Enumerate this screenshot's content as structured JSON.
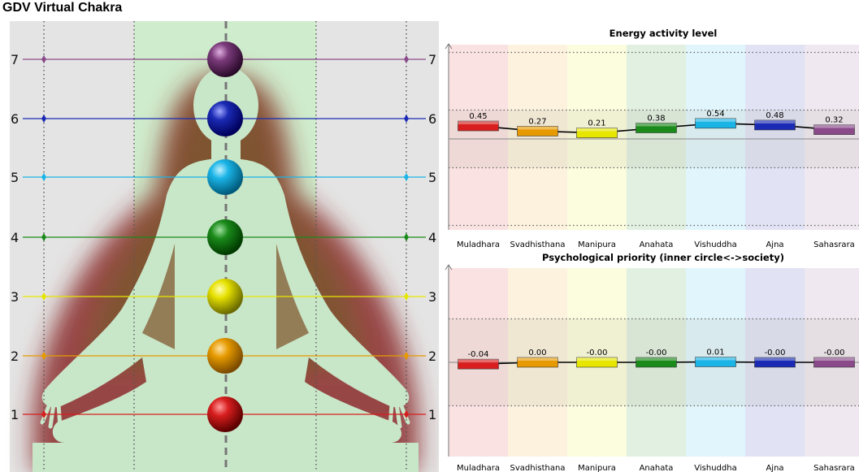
{
  "app": {
    "title": "GDV Virtual Chakra"
  },
  "colors": {
    "chakras": [
      "#d81e1e",
      "#e69a00",
      "#e6e600",
      "#1a8a1a",
      "#1ab4e6",
      "#1a2ab4",
      "#8a4a8a"
    ],
    "background": "#e4e4e4",
    "center_band": "#cfeccc",
    "aura": "#7a1e1e",
    "figure": "#c8e8c8"
  },
  "figure": {
    "left_levels": [
      "7",
      "6",
      "5",
      "4",
      "3",
      "2",
      "1"
    ],
    "right_levels": [
      "7",
      "6",
      "5",
      "4",
      "3",
      "2",
      "1"
    ]
  },
  "chart_data": [
    {
      "type": "line",
      "title": "Energy activity level",
      "categories": [
        "Muladhara",
        "Svadhisthana",
        "Manipura",
        "Anahata",
        "Vishuddha",
        "Ajna",
        "Sahasrara"
      ],
      "values": [
        0.45,
        0.27,
        0.21,
        0.38,
        0.54,
        0.48,
        0.32
      ],
      "value_labels": [
        "0.45",
        "0.27",
        "0.21",
        "0.38",
        "0.54",
        "0.48",
        "0.32"
      ],
      "ylim": [
        -3,
        3
      ],
      "grid": true,
      "legend": "none"
    },
    {
      "type": "line",
      "title": "Psychological priority (inner circle<->society)",
      "categories": [
        "Muladhara",
        "Svadhisthana",
        "Manipura",
        "Anahata",
        "Vishuddha",
        "Ajna",
        "Sahasrara"
      ],
      "values": [
        -0.04,
        0.0,
        -0.0,
        -0.0,
        0.01,
        -0.0,
        -0.0
      ],
      "value_labels": [
        "-0.04",
        "0.00",
        "-0.00",
        "-0.00",
        "0.01",
        "-0.00",
        "-0.00"
      ],
      "ylim": [
        -3,
        3
      ],
      "grid": true,
      "legend": "none"
    }
  ]
}
